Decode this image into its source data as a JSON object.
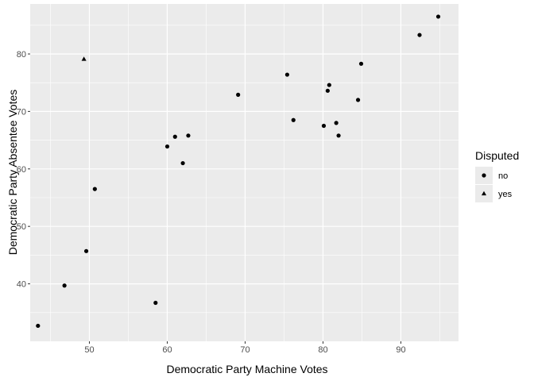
{
  "chart_data": {
    "type": "scatter",
    "title": "",
    "xlabel": "Democratic Party Machine Votes",
    "ylabel": "Democratic Party Absentee Votes",
    "xlim": [
      42.4,
      97.4
    ],
    "ylim": [
      30.0,
      88.7
    ],
    "x_ticks": [
      50,
      60,
      70,
      80,
      90
    ],
    "y_ticks": [
      40,
      50,
      60,
      70,
      80
    ],
    "x_minor": [
      45,
      55,
      65,
      75,
      85,
      95
    ],
    "y_minor": [
      35,
      45,
      55,
      65,
      75,
      85
    ],
    "grid": true,
    "legend": {
      "title": "Disputed",
      "position": "right",
      "entries": [
        {
          "label": "no",
          "shape": "circle"
        },
        {
          "label": "yes",
          "shape": "triangle"
        }
      ]
    },
    "series": [
      {
        "name": "no",
        "shape": "circle",
        "points": [
          {
            "x": 94.8,
            "y": 86.5
          },
          {
            "x": 92.4,
            "y": 83.3
          },
          {
            "x": 84.9,
            "y": 78.3
          },
          {
            "x": 75.4,
            "y": 76.4
          },
          {
            "x": 80.8,
            "y": 74.6
          },
          {
            "x": 80.6,
            "y": 73.6
          },
          {
            "x": 69.1,
            "y": 72.9
          },
          {
            "x": 84.5,
            "y": 72.0
          },
          {
            "x": 76.2,
            "y": 68.5
          },
          {
            "x": 81.7,
            "y": 68.0
          },
          {
            "x": 80.1,
            "y": 67.5
          },
          {
            "x": 82.0,
            "y": 65.8
          },
          {
            "x": 62.7,
            "y": 65.8
          },
          {
            "x": 61.0,
            "y": 65.6
          },
          {
            "x": 60.0,
            "y": 63.9
          },
          {
            "x": 62.0,
            "y": 61.0
          },
          {
            "x": 50.7,
            "y": 56.5
          },
          {
            "x": 49.6,
            "y": 45.7
          },
          {
            "x": 46.8,
            "y": 39.7
          },
          {
            "x": 58.5,
            "y": 36.7
          },
          {
            "x": 43.4,
            "y": 32.7
          }
        ]
      },
      {
        "name": "yes",
        "shape": "triangle",
        "points": [
          {
            "x": 49.3,
            "y": 79.1
          }
        ]
      }
    ]
  }
}
